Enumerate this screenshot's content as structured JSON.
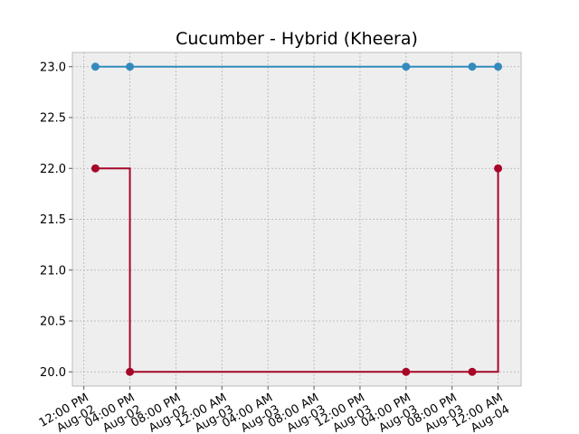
{
  "chart_data": {
    "type": "line",
    "title": "Cucumber - Hybrid (Kheera)",
    "xlabel": "",
    "ylabel": "",
    "x_scale": "time",
    "x_ticks": [
      {
        "value": "2023-08-02T12:00",
        "label": "12:00 PM\nAug-02"
      },
      {
        "value": "2023-08-02T16:00",
        "label": "04:00 PM\nAug-02"
      },
      {
        "value": "2023-08-02T20:00",
        "label": "08:00 PM\nAug-02"
      },
      {
        "value": "2023-08-03T00:00",
        "label": "12:00 AM\nAug-03"
      },
      {
        "value": "2023-08-03T04:00",
        "label": "04:00 AM\nAug-03"
      },
      {
        "value": "2023-08-03T08:00",
        "label": "08:00 AM\nAug-03"
      },
      {
        "value": "2023-08-03T12:00",
        "label": "12:00 PM\nAug-03"
      },
      {
        "value": "2023-08-03T16:00",
        "label": "04:00 PM\nAug-03"
      },
      {
        "value": "2023-08-03T20:00",
        "label": "08:00 PM\nAug-03"
      },
      {
        "value": "2023-08-04T00:00",
        "label": "12:00 AM\nAug-04"
      }
    ],
    "xlim": [
      "2023-08-02T11:00",
      "2023-08-04T02:00"
    ],
    "ylim": [
      19.86,
      23.14
    ],
    "y_ticks": [
      20.0,
      20.5,
      21.0,
      21.5,
      22.0,
      22.5,
      23.0
    ],
    "y_tick_labels": [
      "20.0",
      "20.5",
      "21.0",
      "21.5",
      "22.0",
      "22.5",
      "23.0"
    ],
    "grid": true,
    "style": {
      "background": "#ffffff",
      "plot_background": "#eeeeee",
      "grid_color": "#b2b2b2",
      "spine_color": "#bcbcbc"
    },
    "series": [
      {
        "color": "#348abd",
        "step": "post",
        "points": [
          {
            "x": "2023-08-02T13:00",
            "y": 23.0
          },
          {
            "x": "2023-08-02T16:00",
            "y": 23.0
          },
          {
            "x": "2023-08-03T16:00",
            "y": 23.0
          },
          {
            "x": "2023-08-03T21:45",
            "y": 23.0
          },
          {
            "x": "2023-08-04T00:00",
            "y": 23.0
          }
        ]
      },
      {
        "color": "#a60628",
        "step": "post",
        "points": [
          {
            "x": "2023-08-02T13:00",
            "y": 22.0
          },
          {
            "x": "2023-08-02T16:00",
            "y": 20.0
          },
          {
            "x": "2023-08-03T16:00",
            "y": 20.0
          },
          {
            "x": "2023-08-03T21:45",
            "y": 20.0
          },
          {
            "x": "2023-08-04T00:00",
            "y": 22.0
          }
        ]
      }
    ]
  }
}
